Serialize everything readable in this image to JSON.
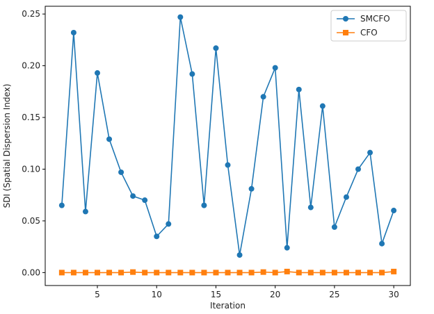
{
  "chart_data": {
    "type": "line",
    "title": "",
    "xlabel": "Iteration",
    "ylabel": "SDI (Spatial Dispersion Index)",
    "xlim": [
      0.6,
      31.4
    ],
    "ylim": [
      -0.0125,
      0.2575
    ],
    "x_ticks": [
      5,
      10,
      15,
      20,
      25,
      30
    ],
    "x_tick_labels": [
      "5",
      "10",
      "15",
      "20",
      "25",
      "30"
    ],
    "y_ticks": [
      0.0,
      0.05,
      0.1,
      0.15,
      0.2,
      0.25
    ],
    "y_tick_labels": [
      "0.00",
      "0.05",
      "0.10",
      "0.15",
      "0.20",
      "0.25"
    ],
    "grid": false,
    "legend_position": "top-right",
    "x": [
      2,
      3,
      4,
      5,
      6,
      7,
      8,
      9,
      10,
      11,
      12,
      13,
      14,
      15,
      16,
      17,
      18,
      19,
      20,
      21,
      22,
      23,
      24,
      25,
      26,
      27,
      28,
      29,
      30
    ],
    "series": [
      {
        "name": "SMCFO",
        "color": "#1f77b4",
        "marker": "circle",
        "values": [
          0.065,
          0.232,
          0.059,
          0.193,
          0.129,
          0.097,
          0.074,
          0.07,
          0.035,
          0.047,
          0.247,
          0.192,
          0.065,
          0.217,
          0.104,
          0.017,
          0.081,
          0.17,
          0.198,
          0.024,
          0.177,
          0.063,
          0.161,
          0.044,
          0.073,
          0.1,
          0.116,
          0.028,
          0.06
        ]
      },
      {
        "name": "CFO",
        "color": "#ff7f0e",
        "marker": "square",
        "values": [
          0.0,
          0.0,
          0.0,
          0.0,
          0.0,
          0.0,
          0.0005,
          0.0,
          0.0,
          0.0,
          0.0,
          0.0,
          0.0,
          0.0,
          0.0,
          0.0,
          0.0,
          0.0005,
          0.0,
          0.001,
          0.0,
          0.0,
          0.0,
          0.0,
          0.0,
          0.0,
          0.0,
          0.0,
          0.001
        ]
      }
    ]
  }
}
